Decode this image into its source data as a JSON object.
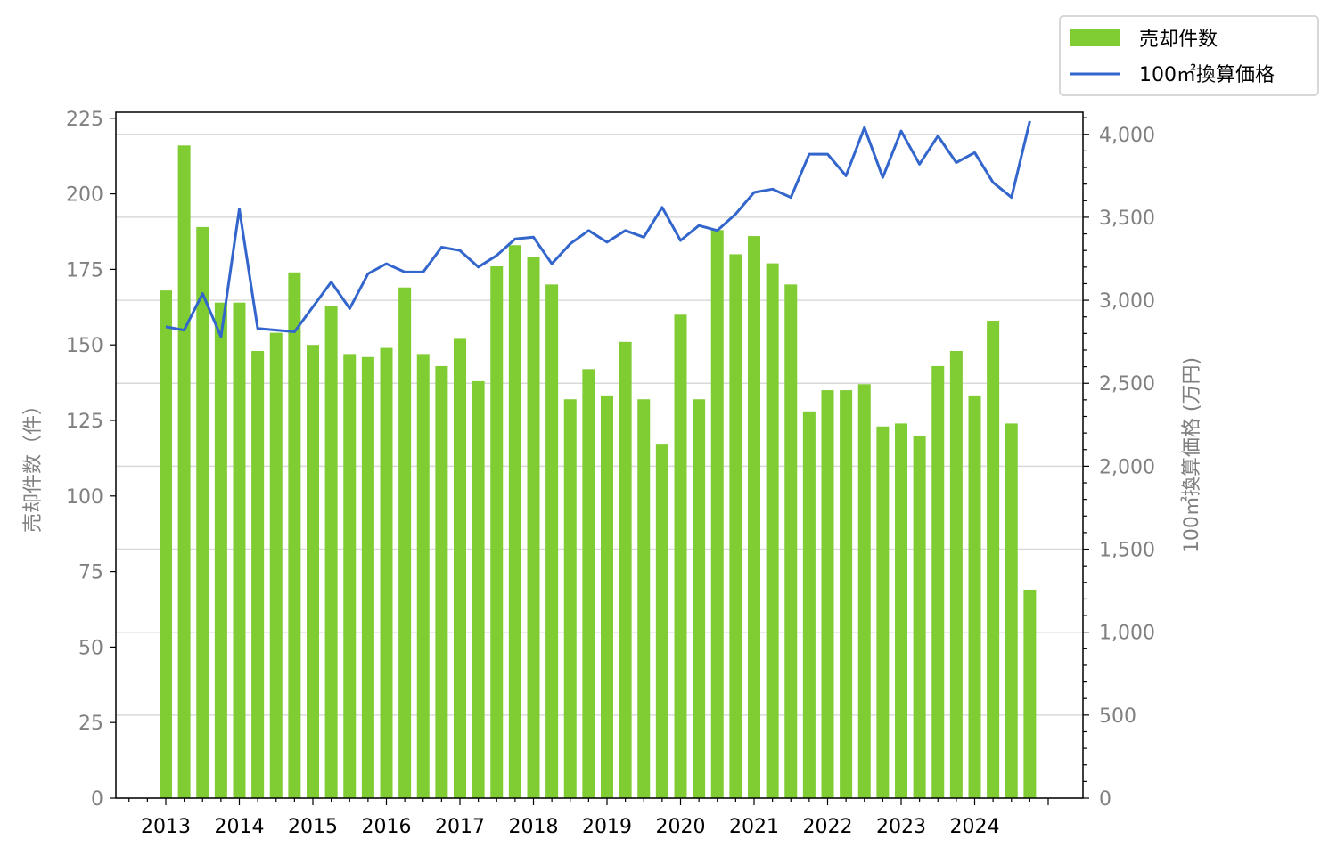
{
  "chart_data": {
    "type": "bar+line",
    "title": "",
    "x_tick_labels": [
      "2013",
      "2014",
      "2015",
      "2016",
      "2017",
      "2018",
      "2019",
      "2020",
      "2021",
      "2022",
      "2023",
      "2024"
    ],
    "x": [
      2013.0,
      2013.25,
      2013.5,
      2013.75,
      2014.0,
      2014.25,
      2014.5,
      2014.75,
      2015.0,
      2015.25,
      2015.5,
      2015.75,
      2016.0,
      2016.25,
      2016.5,
      2016.75,
      2017.0,
      2017.25,
      2017.5,
      2017.75,
      2018.0,
      2018.25,
      2018.5,
      2018.75,
      2019.0,
      2019.25,
      2019.5,
      2019.75,
      2020.0,
      2020.25,
      2020.5,
      2020.75,
      2021.0,
      2021.25,
      2021.5,
      2021.75,
      2022.0,
      2022.25,
      2022.5,
      2022.75,
      2023.0,
      2023.25,
      2023.5,
      2023.75,
      2024.0,
      2024.25,
      2024.5,
      2024.75
    ],
    "series": [
      {
        "name": "売却件数",
        "type": "bar",
        "axis": "left",
        "color": "#7fcc33",
        "values": [
          168,
          216,
          189,
          164,
          164,
          148,
          154,
          174,
          150,
          163,
          147,
          146,
          149,
          169,
          147,
          143,
          152,
          138,
          176,
          183,
          179,
          170,
          132,
          142,
          133,
          151,
          132,
          117,
          160,
          132,
          188,
          180,
          186,
          177,
          170,
          128,
          135,
          135,
          137,
          123,
          124,
          120,
          143,
          148,
          133,
          158,
          124,
          69
        ]
      },
      {
        "name": "100㎡換算価格",
        "type": "line",
        "axis": "right",
        "color": "#3366cc",
        "values": [
          2840,
          2820,
          3040,
          2780,
          3550,
          2830,
          2820,
          2810,
          2960,
          3110,
          2950,
          3160,
          3220,
          3170,
          3170,
          3320,
          3300,
          3200,
          3270,
          3370,
          3380,
          3220,
          3340,
          3420,
          3350,
          3420,
          3380,
          3560,
          3360,
          3450,
          3420,
          3520,
          3650,
          3670,
          3620,
          3880,
          3880,
          3750,
          4040,
          3740,
          4020,
          3820,
          3990,
          3830,
          3890,
          3710,
          3620,
          4080
        ]
      }
    ],
    "ylabel_left": "売却件数（件）",
    "ylabel_right": "100㎡換算価格 (万円)",
    "y_left": {
      "min": 0,
      "max": 227,
      "ticks": [
        0,
        25,
        50,
        75,
        100,
        125,
        150,
        175,
        200,
        225
      ]
    },
    "y_right": {
      "min": 0,
      "max": 4133,
      "ticks": [
        0,
        500,
        1000,
        1500,
        2000,
        2500,
        3000,
        3500,
        4000
      ],
      "tick_labels": [
        "0",
        "500",
        "1,000",
        "1,500",
        "2,000",
        "2,500",
        "3,000",
        "3,500",
        "4,000"
      ]
    },
    "grid": "horizontal, right axis",
    "legend_position": "top-right, outside plot",
    "colors": {
      "tick_text": "#808080",
      "grid": "#d9d9d9",
      "axis": "#000000"
    }
  }
}
